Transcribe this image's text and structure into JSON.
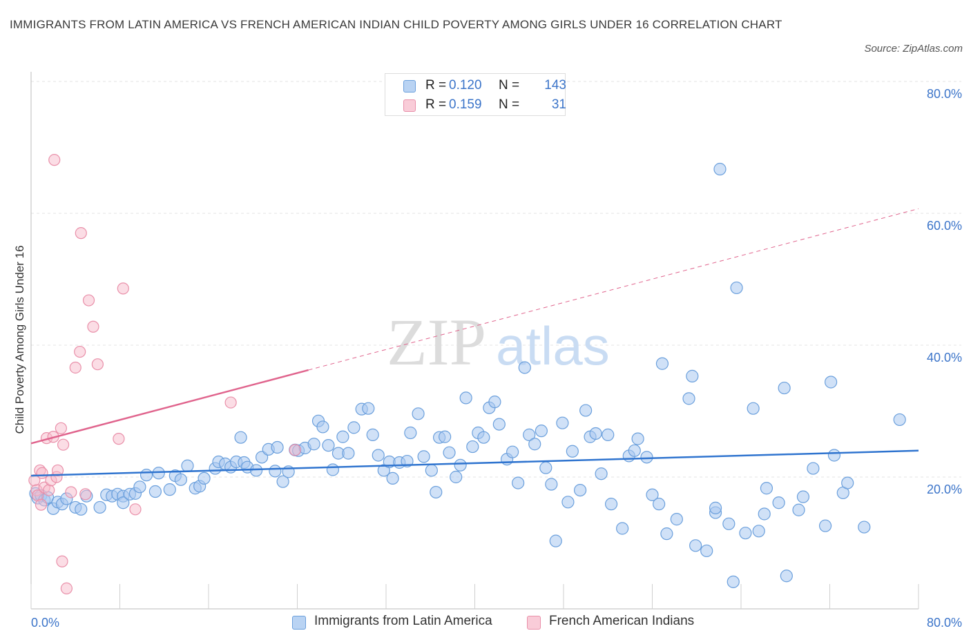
{
  "title": "IMMIGRANTS FROM LATIN AMERICA VS FRENCH AMERICAN INDIAN CHILD POVERTY AMONG GIRLS UNDER 16 CORRELATION CHART",
  "source": "Source: ZipAtlas.com",
  "watermark": {
    "zip": "ZIP",
    "atlas": "atlas"
  },
  "legend": {
    "rows": [
      {
        "r_label": "R =",
        "r_value": "0.120",
        "n_label": "N =",
        "n_value": "143"
      },
      {
        "r_label": "R =",
        "r_value": "0.159",
        "n_label": "N =",
        "n_value": "31"
      }
    ]
  },
  "colors": {
    "blue_fill": "#a9c8f0",
    "blue_stroke": "#6a9fdc",
    "blue_line": "#2f74cf",
    "pink_fill": "#f7bccb",
    "pink_stroke": "#e98fa9",
    "pink_line": "#e0648d",
    "grid": "#e3e3e3",
    "axis_label": "#3b74c9"
  },
  "chart_data": {
    "type": "scatter",
    "title": "IMMIGRANTS FROM LATIN AMERICA VS FRENCH AMERICAN INDIAN CHILD POVERTY AMONG GIRLS UNDER 16 CORRELATION CHART",
    "xlabel": "",
    "ylabel": "Child Poverty Among Girls Under 16",
    "xlim": [
      0,
      80
    ],
    "ylim": [
      0,
      80
    ],
    "x_tick_labels": [
      "0.0%",
      "80.0%"
    ],
    "y_tick_labels": [
      "20.0%",
      "40.0%",
      "60.0%",
      "80.0%"
    ],
    "y_ticks": [
      20,
      40,
      60,
      80
    ],
    "grid": true,
    "legend_position": "top-center",
    "series": [
      {
        "name": "Immigrants from Latin America",
        "color": "#6a9fdc",
        "trend": {
          "x": [
            0,
            80
          ],
          "y": [
            20.2,
            24.0
          ],
          "dashed_extension": false
        },
        "points": [
          [
            0.4,
            17.5
          ],
          [
            0.6,
            16.8
          ],
          [
            0.9,
            17.2
          ],
          [
            1.2,
            16.5
          ],
          [
            1.5,
            16.9
          ],
          [
            2.0,
            15.2
          ],
          [
            2.4,
            16.2
          ],
          [
            2.8,
            15.9
          ],
          [
            3.2,
            16.7
          ],
          [
            4.0,
            15.4
          ],
          [
            4.5,
            15.1
          ],
          [
            5.0,
            17.1
          ],
          [
            6.2,
            15.4
          ],
          [
            6.8,
            17.3
          ],
          [
            7.3,
            17.1
          ],
          [
            7.8,
            17.4
          ],
          [
            8.3,
            17.1
          ],
          [
            8.3,
            16.1
          ],
          [
            8.9,
            17.4
          ],
          [
            9.4,
            17.5
          ],
          [
            9.8,
            18.5
          ],
          [
            10.4,
            20.3
          ],
          [
            11.2,
            17.8
          ],
          [
            11.5,
            20.6
          ],
          [
            12.5,
            18.1
          ],
          [
            13.0,
            20.2
          ],
          [
            13.5,
            19.6
          ],
          [
            14.1,
            21.7
          ],
          [
            14.8,
            18.3
          ],
          [
            15.2,
            18.6
          ],
          [
            15.6,
            19.8
          ],
          [
            16.6,
            21.3
          ],
          [
            16.9,
            22.3
          ],
          [
            17.5,
            22.0
          ],
          [
            18.0,
            21.5
          ],
          [
            18.5,
            22.3
          ],
          [
            18.9,
            26.0
          ],
          [
            19.2,
            22.2
          ],
          [
            19.5,
            21.5
          ],
          [
            20.3,
            21.0
          ],
          [
            20.8,
            23.0
          ],
          [
            21.4,
            24.2
          ],
          [
            22.0,
            20.9
          ],
          [
            22.2,
            24.5
          ],
          [
            22.7,
            19.3
          ],
          [
            23.2,
            20.8
          ],
          [
            23.8,
            24.1
          ],
          [
            24.1,
            24.0
          ],
          [
            24.7,
            24.4
          ],
          [
            25.5,
            25.0
          ],
          [
            25.9,
            28.5
          ],
          [
            26.3,
            27.6
          ],
          [
            26.8,
            24.8
          ],
          [
            27.2,
            21.1
          ],
          [
            27.7,
            23.6
          ],
          [
            28.1,
            26.1
          ],
          [
            28.6,
            23.6
          ],
          [
            29.1,
            27.5
          ],
          [
            29.8,
            30.3
          ],
          [
            30.4,
            30.4
          ],
          [
            30.8,
            26.4
          ],
          [
            31.3,
            23.3
          ],
          [
            31.8,
            21.0
          ],
          [
            32.3,
            22.3
          ],
          [
            32.6,
            19.8
          ],
          [
            33.2,
            22.2
          ],
          [
            33.9,
            22.4
          ],
          [
            34.2,
            26.7
          ],
          [
            34.9,
            29.6
          ],
          [
            35.4,
            23.1
          ],
          [
            36.1,
            21.0
          ],
          [
            36.5,
            17.7
          ],
          [
            36.8,
            26.0
          ],
          [
            37.3,
            26.1
          ],
          [
            37.7,
            23.7
          ],
          [
            38.3,
            20.0
          ],
          [
            38.7,
            21.8
          ],
          [
            39.2,
            32.0
          ],
          [
            39.8,
            24.6
          ],
          [
            40.3,
            26.7
          ],
          [
            40.8,
            26.0
          ],
          [
            41.3,
            30.5
          ],
          [
            41.8,
            31.4
          ],
          [
            42.2,
            28.0
          ],
          [
            42.9,
            22.7
          ],
          [
            43.4,
            23.8
          ],
          [
            43.9,
            19.1
          ],
          [
            44.5,
            36.6
          ],
          [
            44.9,
            26.4
          ],
          [
            45.4,
            25.0
          ],
          [
            46.0,
            27.0
          ],
          [
            46.4,
            21.4
          ],
          [
            46.9,
            18.9
          ],
          [
            47.3,
            10.3
          ],
          [
            47.9,
            28.2
          ],
          [
            48.4,
            16.2
          ],
          [
            48.8,
            23.9
          ],
          [
            49.5,
            18.0
          ],
          [
            50.0,
            30.1
          ],
          [
            50.4,
            26.1
          ],
          [
            50.9,
            26.6
          ],
          [
            51.4,
            20.5
          ],
          [
            52.0,
            26.4
          ],
          [
            52.3,
            15.9
          ],
          [
            53.3,
            12.2
          ],
          [
            53.9,
            23.2
          ],
          [
            54.4,
            24.0
          ],
          [
            54.7,
            25.8
          ],
          [
            55.5,
            23.0
          ],
          [
            56.0,
            17.3
          ],
          [
            56.6,
            15.9
          ],
          [
            56.9,
            37.2
          ],
          [
            57.3,
            11.4
          ],
          [
            58.2,
            13.6
          ],
          [
            59.3,
            31.9
          ],
          [
            59.6,
            35.3
          ],
          [
            59.9,
            9.6
          ],
          [
            60.9,
            8.8
          ],
          [
            61.7,
            14.6
          ],
          [
            61.7,
            15.3
          ],
          [
            62.1,
            66.7
          ],
          [
            62.9,
            12.9
          ],
          [
            63.3,
            4.1
          ],
          [
            63.6,
            48.7
          ],
          [
            64.4,
            11.5
          ],
          [
            65.1,
            30.4
          ],
          [
            65.6,
            11.8
          ],
          [
            66.1,
            14.4
          ],
          [
            66.3,
            18.3
          ],
          [
            67.4,
            16.1
          ],
          [
            67.9,
            33.5
          ],
          [
            68.1,
            5.0
          ],
          [
            69.6,
            17.0
          ],
          [
            69.2,
            15.0
          ],
          [
            70.5,
            21.3
          ],
          [
            71.6,
            12.6
          ],
          [
            72.1,
            34.4
          ],
          [
            72.4,
            23.3
          ],
          [
            73.2,
            17.6
          ],
          [
            73.6,
            19.1
          ],
          [
            75.1,
            12.4
          ],
          [
            78.3,
            28.7
          ]
        ]
      },
      {
        "name": "French American Indians",
        "color": "#e98fa9",
        "trend": {
          "x": [
            0,
            80
          ],
          "y": [
            25.1,
            60.7
          ],
          "solid_until_x": 25
        },
        "points": [
          [
            0.3,
            19.5
          ],
          [
            0.5,
            18.0
          ],
          [
            0.6,
            17.2
          ],
          [
            0.8,
            21.0
          ],
          [
            0.9,
            15.8
          ],
          [
            1.0,
            20.6
          ],
          [
            1.2,
            18.4
          ],
          [
            1.4,
            25.9
          ],
          [
            1.6,
            18.0
          ],
          [
            1.8,
            19.5
          ],
          [
            2.0,
            26.1
          ],
          [
            2.1,
            68.1
          ],
          [
            2.3,
            20.0
          ],
          [
            2.4,
            21.0
          ],
          [
            2.7,
            27.4
          ],
          [
            2.9,
            24.9
          ],
          [
            2.8,
            7.2
          ],
          [
            3.2,
            3.1
          ],
          [
            3.6,
            17.7
          ],
          [
            4.0,
            36.6
          ],
          [
            4.4,
            39.0
          ],
          [
            4.5,
            57.0
          ],
          [
            4.9,
            17.4
          ],
          [
            5.2,
            46.8
          ],
          [
            5.6,
            42.8
          ],
          [
            6.0,
            37.1
          ],
          [
            7.9,
            25.8
          ],
          [
            8.3,
            48.6
          ],
          [
            9.4,
            15.1
          ],
          [
            18.0,
            31.3
          ],
          [
            23.8,
            24.1
          ]
        ]
      }
    ]
  },
  "bottom_legend": [
    {
      "label": "Immigrants from Latin America"
    },
    {
      "label": "French American Indians"
    }
  ]
}
